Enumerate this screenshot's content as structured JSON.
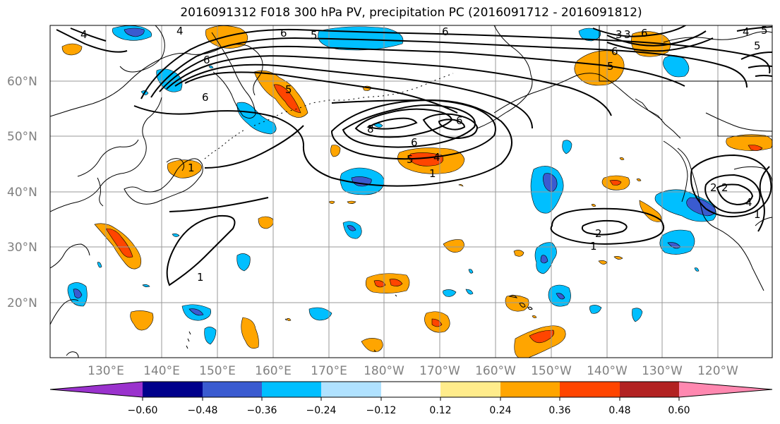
{
  "title": "2016091312 F018 300 hPa PV, precipitation PC (2016091712 - 2016091812)",
  "map": {
    "lat_labels": [
      "60°N",
      "50°N",
      "40°N",
      "30°N",
      "20°N"
    ],
    "lon_labels": [
      "130°E",
      "140°E",
      "150°E",
      "160°E",
      "170°E",
      "180°W",
      "170°W",
      "160°W",
      "150°W",
      "140°W",
      "130°W",
      "120°W"
    ],
    "gridlines": true
  },
  "colorbar": {
    "tick_labels": [
      "−0.60",
      "−0.48",
      "−0.36",
      "−0.24",
      "−0.12",
      "0.12",
      "0.24",
      "0.36",
      "0.48",
      "0.60"
    ],
    "colors": [
      "#9a32cd",
      "#00008b",
      "#3a5bd0",
      "#00bfff",
      "#b0e2ff",
      "#ffffff",
      "#ffec8b",
      "#ffa500",
      "#ff4500",
      "#b22222",
      "#ff88b0"
    ]
  },
  "pv_contour_labels": [
    "4",
    "5",
    "6",
    "6",
    "6",
    "6",
    "5",
    "4",
    "6",
    "5",
    "3",
    "6",
    "5",
    "4",
    "5",
    "6",
    "8",
    "6",
    "5",
    "4",
    "1",
    "2",
    "2",
    "1",
    "1",
    "2",
    "1",
    "3",
    "4",
    "1"
  ]
}
